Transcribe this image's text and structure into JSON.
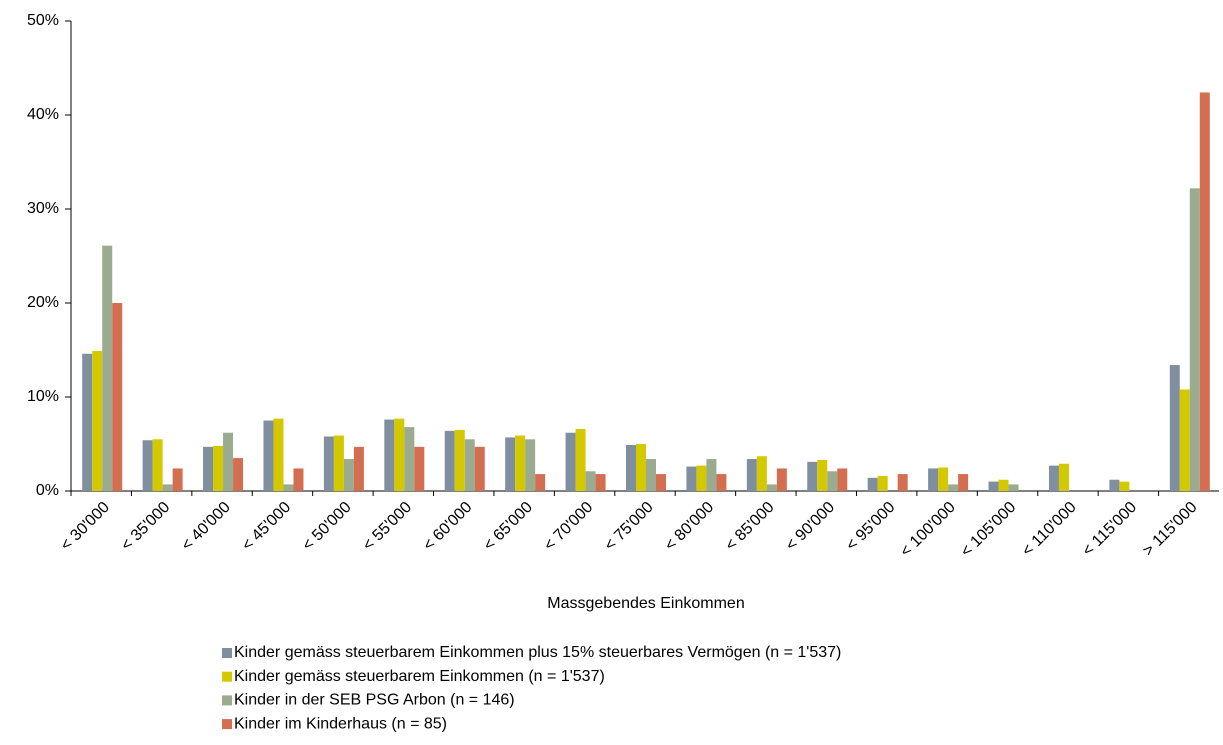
{
  "chart_data": {
    "type": "bar",
    "categories": [
      "< 30'000",
      "< 35'000",
      "< 40'000",
      "< 45'000",
      "< 50'000",
      "< 55'000",
      "< 60'000",
      "< 65'000",
      "< 70'000",
      "< 75'000",
      "< 80'000",
      "< 85'000",
      "< 90'000",
      "< 95'000",
      "< 100'000",
      "< 105'000",
      "< 110'000",
      "< 115'000",
      "> 115'000"
    ],
    "series": [
      {
        "name": "Kinder gemäss steuerbarem Einkommen plus 15% steuerbares Vermögen (n = 1'537)",
        "color": "#7f8fa0",
        "values": [
          14.6,
          5.4,
          4.7,
          7.5,
          5.8,
          7.6,
          6.4,
          5.7,
          6.2,
          4.9,
          2.6,
          3.4,
          3.1,
          1.4,
          2.4,
          1.0,
          2.7,
          1.2,
          13.4
        ]
      },
      {
        "name": "Kinder gemäss steuerbarem Einkommen (n = 1'537)",
        "color": "#d4c800",
        "values": [
          14.9,
          5.5,
          4.8,
          7.7,
          5.9,
          7.7,
          6.5,
          5.9,
          6.6,
          5.0,
          2.7,
          3.7,
          3.3,
          1.6,
          2.5,
          1.2,
          2.9,
          1.0,
          10.8
        ]
      },
      {
        "name": "Kinder in der SEB PSG Arbon (n = 146)",
        "color": "#9aab8f",
        "values": [
          26.1,
          0.7,
          6.2,
          0.7,
          3.4,
          6.8,
          5.5,
          5.5,
          2.1,
          3.4,
          3.4,
          0.7,
          2.1,
          0,
          0.7,
          0.7,
          0,
          0,
          32.2
        ]
      },
      {
        "name": "Kinder im Kinderhaus (n = 85)",
        "color": "#d46e50",
        "values": [
          20.0,
          2.4,
          3.5,
          2.4,
          4.7,
          4.7,
          4.7,
          1.8,
          1.8,
          1.8,
          1.8,
          2.4,
          2.4,
          1.8,
          1.8,
          0,
          0,
          0,
          42.4
        ]
      }
    ],
    "x_label": "Massgebendes Einkommen",
    "ylim": [
      0,
      50
    ],
    "yticks": [
      {
        "value": 0,
        "label": "0%"
      },
      {
        "value": 10,
        "label": "10%"
      },
      {
        "value": 20,
        "label": "20%"
      },
      {
        "value": 30,
        "label": "30%"
      },
      {
        "value": 40,
        "label": "40%"
      },
      {
        "value": 50,
        "label": "50%"
      }
    ],
    "legend": "bottom"
  }
}
